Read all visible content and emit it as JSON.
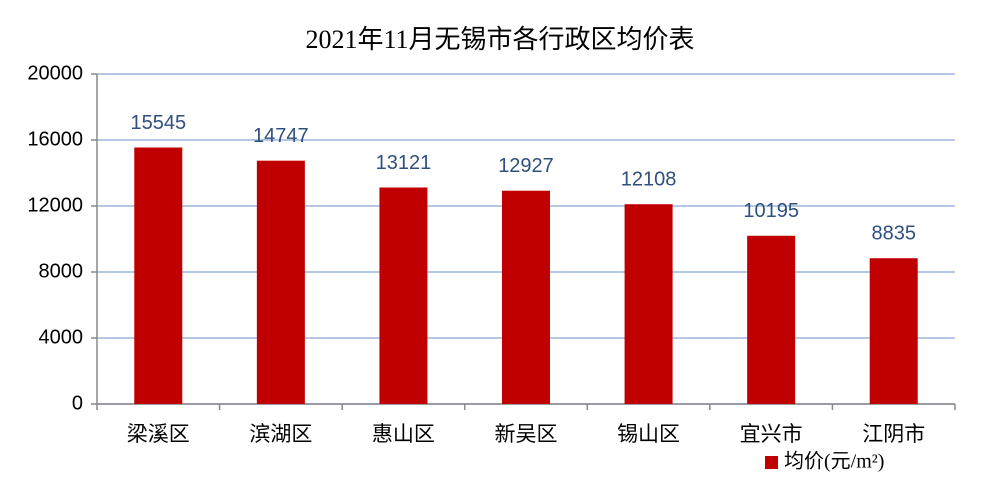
{
  "chart_data": {
    "type": "bar",
    "title": "2021年11月无锡市各行政区均价表",
    "categories": [
      "梁溪区",
      "滨湖区",
      "惠山区",
      "新吴区",
      "锡山区",
      "宜兴市",
      "江阴市"
    ],
    "series": [
      {
        "name": "均价(元/m²)",
        "color": "#c00000",
        "values": [
          15545,
          14747,
          13121,
          12927,
          12108,
          10195,
          8835
        ]
      }
    ],
    "ylim": [
      0,
      20000
    ],
    "yticks": [
      0,
      4000,
      8000,
      12000,
      16000,
      20000
    ],
    "grid": true,
    "legend": "bottom-right"
  }
}
